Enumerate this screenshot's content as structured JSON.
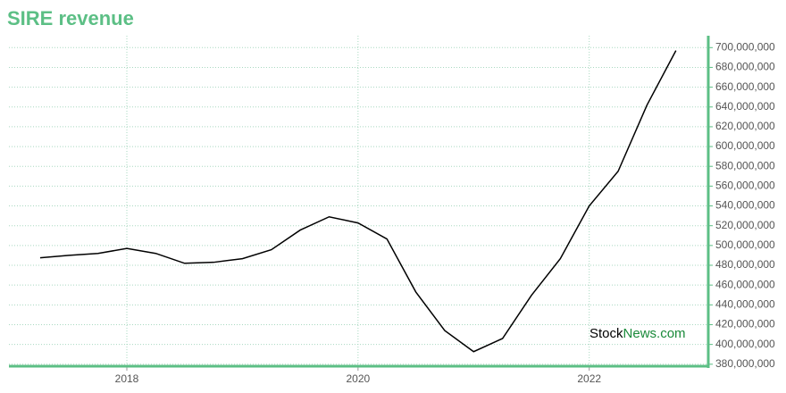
{
  "chart_data": {
    "type": "line",
    "title": "SIRE revenue",
    "watermark": [
      "Stock",
      "News.com"
    ],
    "x": [
      2017.25,
      2017.5,
      2017.75,
      2018,
      2018.25,
      2018.5,
      2018.75,
      2019,
      2019.25,
      2019.5,
      2019.75,
      2020,
      2020.25,
      2020.5,
      2020.75,
      2021,
      2021.25,
      2021.5,
      2021.75,
      2022,
      2022.25,
      2022.5,
      2022.75
    ],
    "series": [
      {
        "name": "SIRE revenue",
        "color": "#000000",
        "values": [
          487600000,
          490000000,
          492000000,
          497000000,
          492000000,
          482000000,
          483000000,
          486700000,
          495700000,
          515600000,
          529000000,
          522800000,
          506600000,
          453000000,
          414000000,
          392700000,
          406000000,
          449600000,
          486700000,
          540000000,
          575000000,
          642000000,
          697000000
        ]
      }
    ],
    "xlim": [
      2016.98,
      2023.03
    ],
    "xticks": [
      2018,
      2020,
      2022
    ],
    "ylim": [
      378000000,
      712000000
    ],
    "yticks": [
      {
        "value": 380000000,
        "label": "380,000,000"
      },
      {
        "value": 400000000,
        "label": "400,000,000"
      },
      {
        "value": 420000000,
        "label": "420,000,000"
      },
      {
        "value": 440000000,
        "label": "440,000,000"
      },
      {
        "value": 460000000,
        "label": "460,000,000"
      },
      {
        "value": 480000000,
        "label": "480,000,000"
      },
      {
        "value": 500000000,
        "label": "500,000,000"
      },
      {
        "value": 520000000,
        "label": "520,000,000"
      },
      {
        "value": 540000000,
        "label": "540,000,000"
      },
      {
        "value": 560000000,
        "label": "560,000,000"
      },
      {
        "value": 580000000,
        "label": "580,000,000"
      },
      {
        "value": 600000000,
        "label": "600,000,000"
      },
      {
        "value": 620000000,
        "label": "620,000,000"
      },
      {
        "value": 640000000,
        "label": "640,000,000"
      },
      {
        "value": 660000000,
        "label": "660,000,000"
      },
      {
        "value": 680000000,
        "label": "680,000,000"
      },
      {
        "value": 700000000,
        "label": "700,000,000"
      }
    ],
    "grid": true,
    "axis_color": "#5cbf85"
  }
}
